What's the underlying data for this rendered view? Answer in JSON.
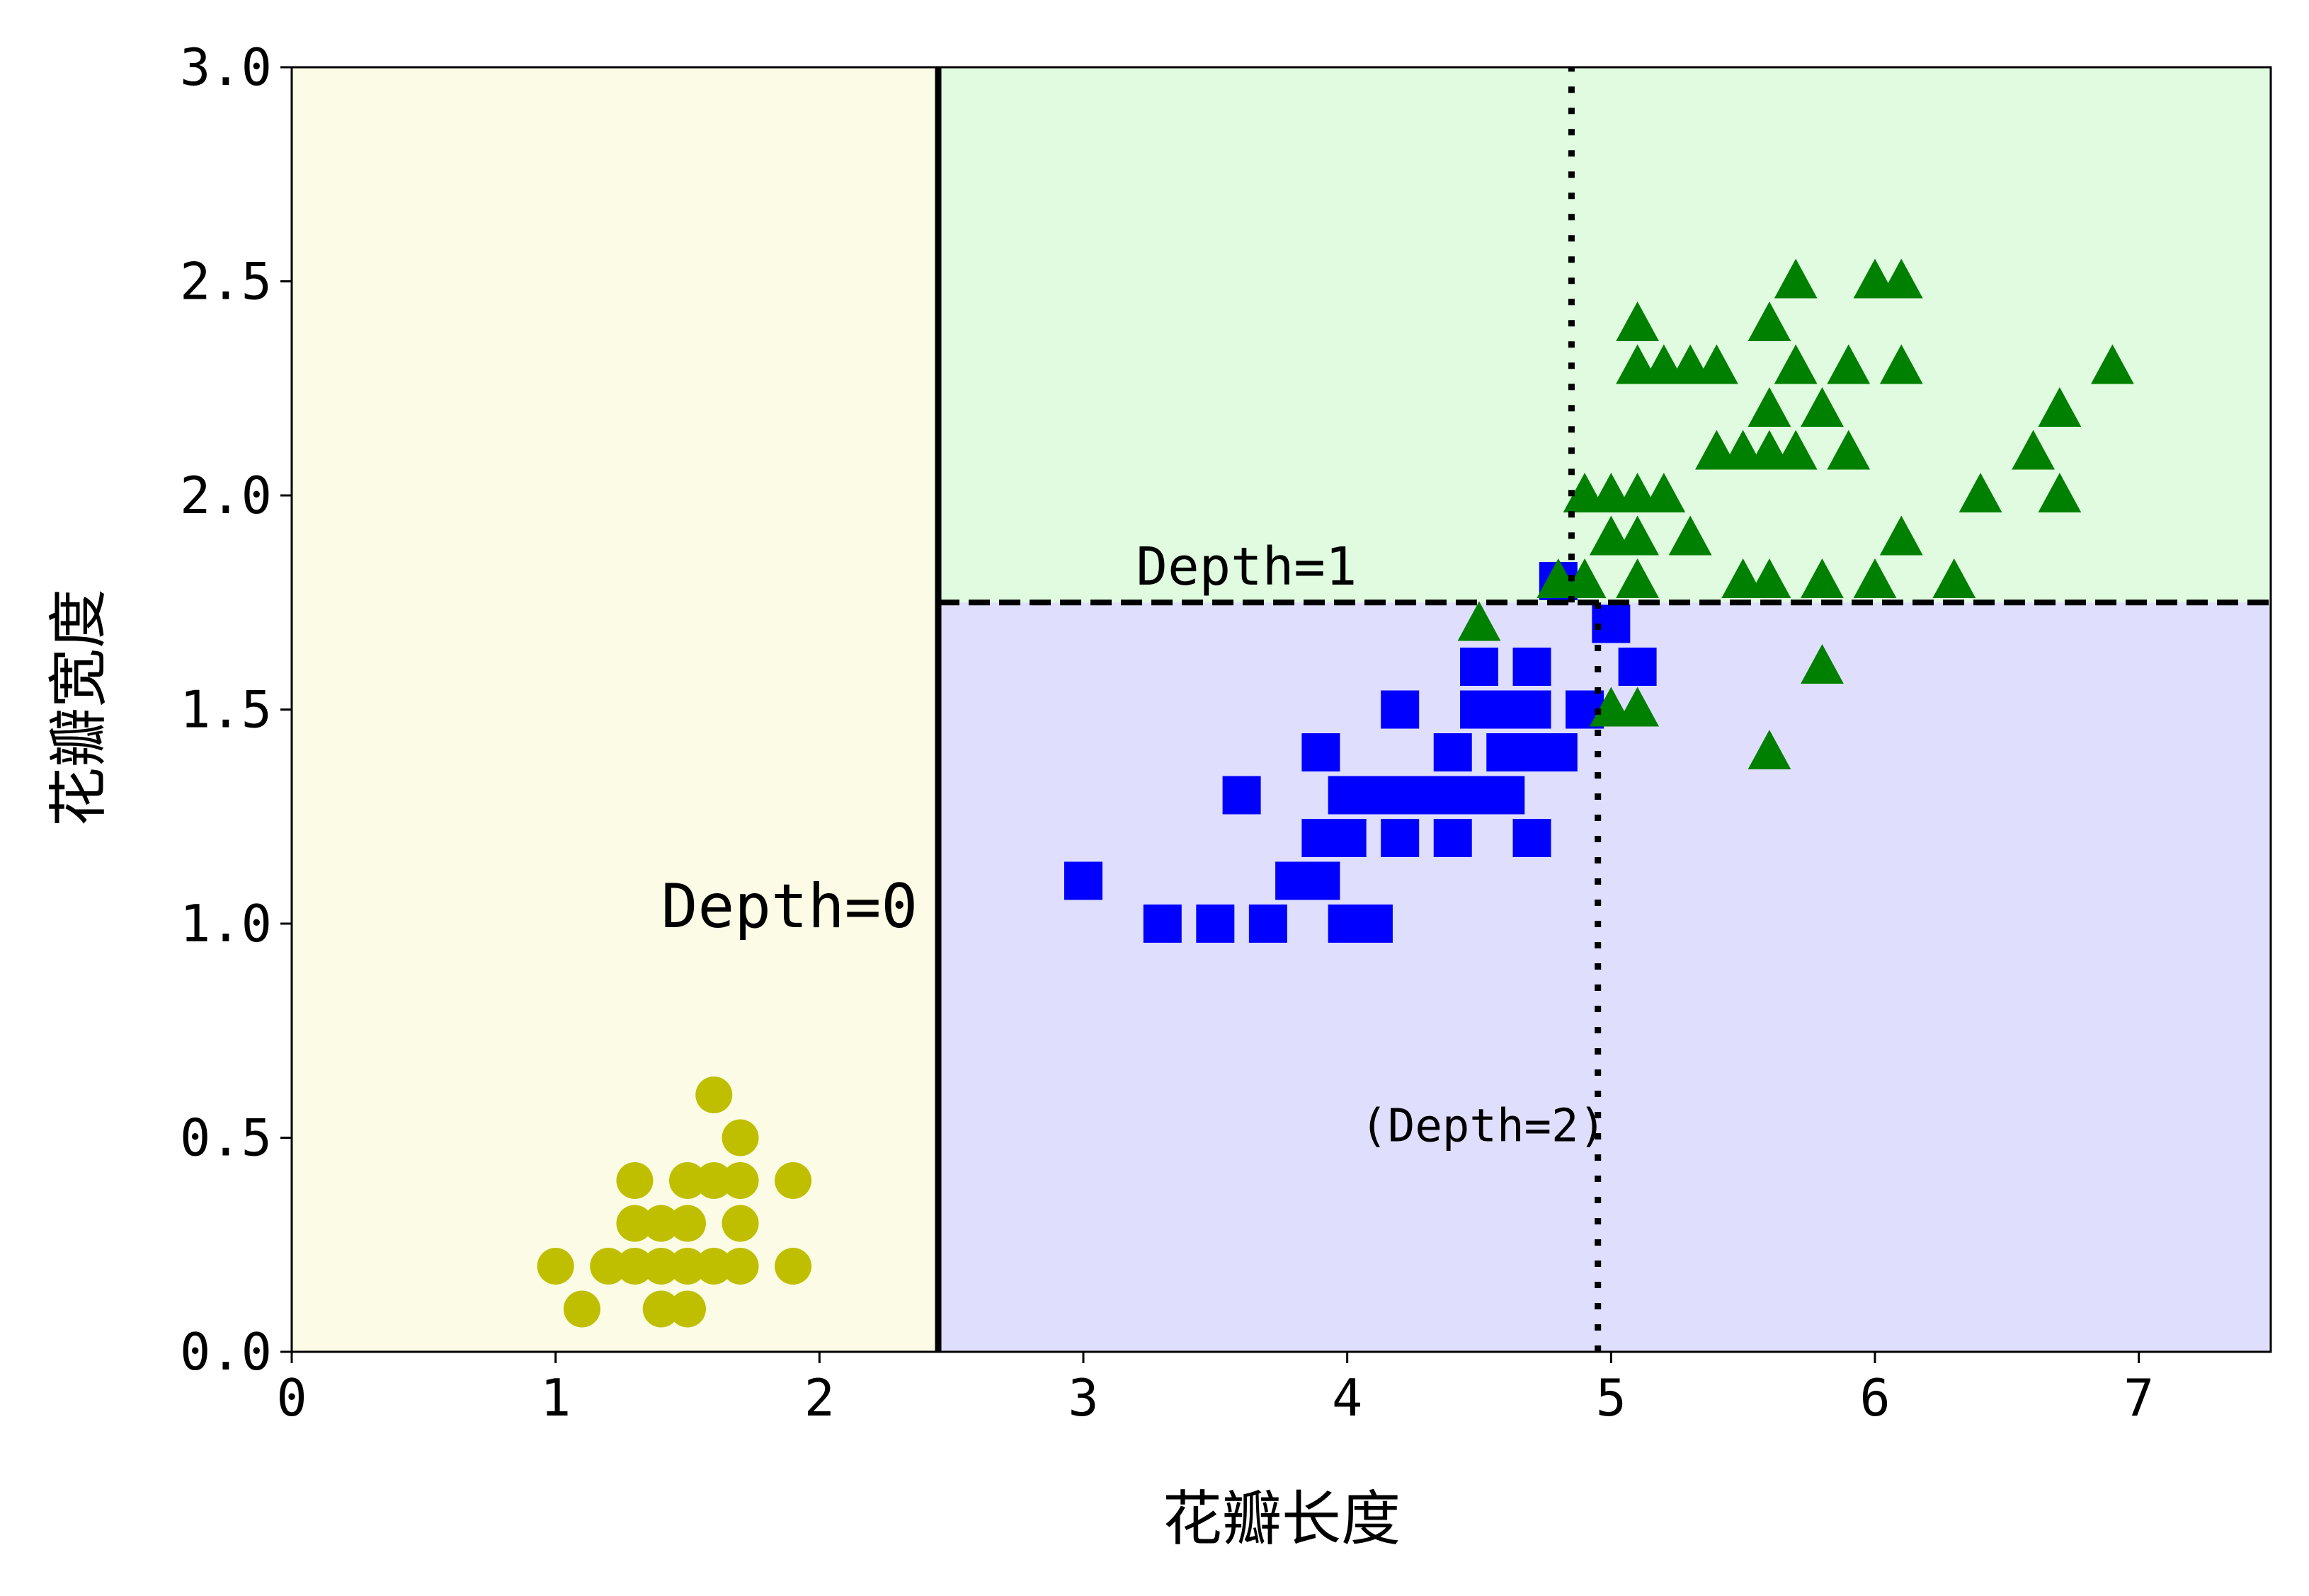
{
  "chart_data": {
    "type": "scatter",
    "title": "",
    "xlabel": "花瓣长度",
    "ylabel": "花瓣宽度",
    "xlim": [
      0,
      7.5
    ],
    "ylim": [
      0,
      3.0
    ],
    "xticks": [
      "0",
      "1",
      "2",
      "3",
      "4",
      "5",
      "6",
      "7"
    ],
    "yticks": [
      "0.0",
      "0.5",
      "1.0",
      "1.5",
      "2.0",
      "2.5",
      "3.0"
    ],
    "grid": false,
    "regions": [
      {
        "x": [
          0,
          2.45
        ],
        "y": [
          0,
          3.0
        ],
        "color": "#fbfbe6"
      },
      {
        "x": [
          2.45,
          7.5
        ],
        "y": [
          1.75,
          3.0
        ],
        "color": "#e0fbe0"
      },
      {
        "x": [
          2.45,
          7.5
        ],
        "y": [
          0,
          1.75
        ],
        "color": "#dfdffd"
      }
    ],
    "boundaries": [
      {
        "orient": "v",
        "at": 2.45,
        "from": 0,
        "to": 3.0,
        "style": "solid"
      },
      {
        "orient": "h",
        "at": 1.75,
        "from": 2.45,
        "to": 7.5,
        "style": "dashed"
      },
      {
        "orient": "v",
        "at": 4.95,
        "from": 0,
        "to": 1.75,
        "style": "dotted"
      },
      {
        "orient": "v",
        "at": 4.85,
        "from": 1.75,
        "to": 3.0,
        "style": "dotted"
      }
    ],
    "annotations": [
      {
        "text": "Depth=0",
        "x": 1.4,
        "y": 1.0,
        "size": "large"
      },
      {
        "text": "Depth=1",
        "x": 3.2,
        "y": 1.8,
        "size": "medium"
      },
      {
        "text": "(Depth=2)",
        "x": 4.05,
        "y": 0.5,
        "size": "small"
      }
    ],
    "series": [
      {
        "marker": "circle",
        "color": "#bfbf00",
        "points": [
          [
            1.0,
            0.2
          ],
          [
            1.1,
            0.1
          ],
          [
            1.2,
            0.2
          ],
          [
            1.3,
            0.2
          ],
          [
            1.3,
            0.3
          ],
          [
            1.3,
            0.4
          ],
          [
            1.4,
            0.1
          ],
          [
            1.4,
            0.2
          ],
          [
            1.4,
            0.3
          ],
          [
            1.5,
            0.1
          ],
          [
            1.5,
            0.2
          ],
          [
            1.5,
            0.3
          ],
          [
            1.5,
            0.4
          ],
          [
            1.6,
            0.2
          ],
          [
            1.6,
            0.4
          ],
          [
            1.6,
            0.6
          ],
          [
            1.7,
            0.2
          ],
          [
            1.7,
            0.3
          ],
          [
            1.7,
            0.4
          ],
          [
            1.7,
            0.5
          ],
          [
            1.9,
            0.2
          ],
          [
            1.9,
            0.4
          ]
        ]
      },
      {
        "marker": "square",
        "color": "#0000ff",
        "points": [
          [
            3.0,
            1.1
          ],
          [
            3.3,
            1.0
          ],
          [
            3.5,
            1.0
          ],
          [
            3.6,
            1.3
          ],
          [
            3.7,
            1.0
          ],
          [
            3.8,
            1.1
          ],
          [
            3.9,
            1.1
          ],
          [
            3.9,
            1.2
          ],
          [
            3.9,
            1.4
          ],
          [
            4.0,
            1.0
          ],
          [
            4.0,
            1.2
          ],
          [
            4.0,
            1.3
          ],
          [
            4.1,
            1.0
          ],
          [
            4.1,
            1.3
          ],
          [
            4.2,
            1.2
          ],
          [
            4.2,
            1.3
          ],
          [
            4.2,
            1.5
          ],
          [
            4.3,
            1.3
          ],
          [
            4.4,
            1.2
          ],
          [
            4.4,
            1.3
          ],
          [
            4.4,
            1.4
          ],
          [
            4.5,
            1.3
          ],
          [
            4.5,
            1.5
          ],
          [
            4.5,
            1.6
          ],
          [
            4.6,
            1.3
          ],
          [
            4.6,
            1.4
          ],
          [
            4.6,
            1.5
          ],
          [
            4.7,
            1.2
          ],
          [
            4.7,
            1.4
          ],
          [
            4.7,
            1.5
          ],
          [
            4.7,
            1.6
          ],
          [
            4.8,
            1.4
          ],
          [
            4.8,
            1.8
          ],
          [
            4.9,
            1.5
          ],
          [
            5.0,
            1.7
          ],
          [
            5.1,
            1.6
          ]
        ]
      },
      {
        "marker": "triangle",
        "color": "#008000",
        "points": [
          [
            4.5,
            1.7
          ],
          [
            4.8,
            1.8
          ],
          [
            4.9,
            1.8
          ],
          [
            4.9,
            2.0
          ],
          [
            5.0,
            1.5
          ],
          [
            5.0,
            2.0
          ],
          [
            5.0,
            1.9
          ],
          [
            5.1,
            1.5
          ],
          [
            5.1,
            1.8
          ],
          [
            5.1,
            1.9
          ],
          [
            5.1,
            2.0
          ],
          [
            5.1,
            2.3
          ],
          [
            5.1,
            2.4
          ],
          [
            5.2,
            2.0
          ],
          [
            5.2,
            2.3
          ],
          [
            5.3,
            1.9
          ],
          [
            5.3,
            2.3
          ],
          [
            5.4,
            2.1
          ],
          [
            5.4,
            2.3
          ],
          [
            5.5,
            1.8
          ],
          [
            5.5,
            2.1
          ],
          [
            5.6,
            1.4
          ],
          [
            5.6,
            1.8
          ],
          [
            5.6,
            2.1
          ],
          [
            5.6,
            2.2
          ],
          [
            5.6,
            2.4
          ],
          [
            5.7,
            2.1
          ],
          [
            5.7,
            2.3
          ],
          [
            5.7,
            2.5
          ],
          [
            5.8,
            1.6
          ],
          [
            5.8,
            1.8
          ],
          [
            5.8,
            2.2
          ],
          [
            5.9,
            2.1
          ],
          [
            5.9,
            2.3
          ],
          [
            6.0,
            1.8
          ],
          [
            6.0,
            2.5
          ],
          [
            6.1,
            1.9
          ],
          [
            6.1,
            2.3
          ],
          [
            6.1,
            2.5
          ],
          [
            6.3,
            1.8
          ],
          [
            6.4,
            2.0
          ],
          [
            6.6,
            2.1
          ],
          [
            6.7,
            2.0
          ],
          [
            6.7,
            2.2
          ],
          [
            6.9,
            2.3
          ]
        ]
      }
    ]
  }
}
